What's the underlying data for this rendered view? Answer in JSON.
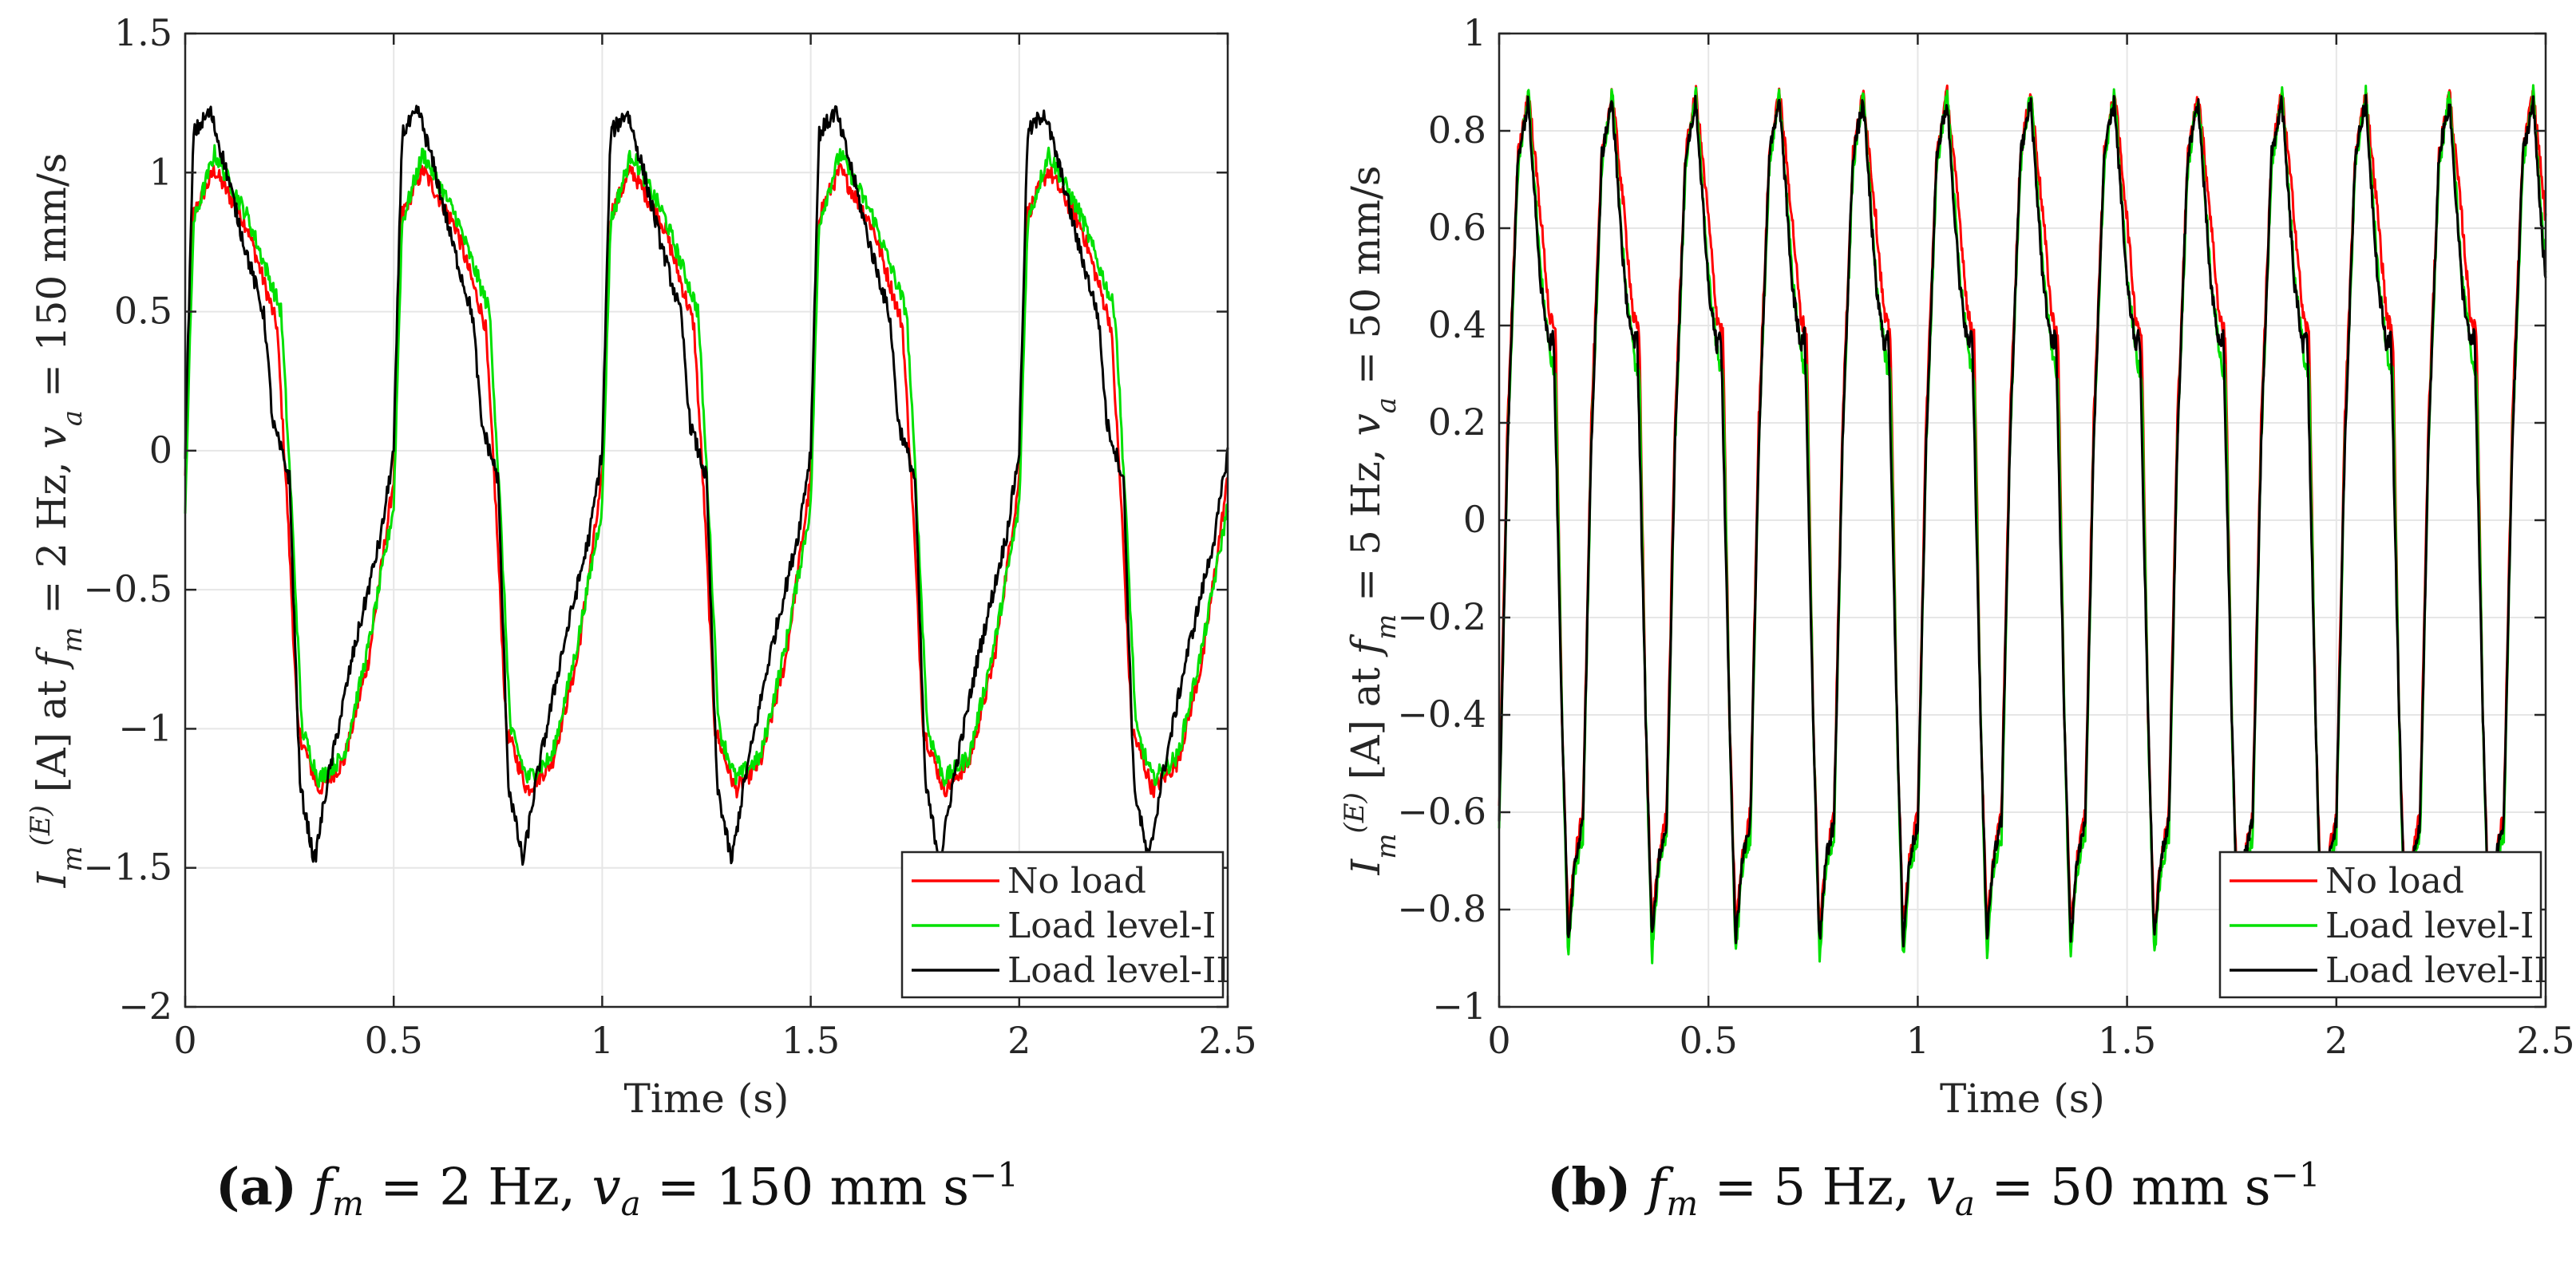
{
  "chart_data": [
    {
      "type": "line",
      "panel": "a",
      "caption": {
        "tag": "(a)",
        "fm": "2 Hz",
        "va": "150 mm s",
        "va_exp": "−1"
      },
      "ylabel": {
        "base": "I",
        "sub": "m",
        "sup": "(E)",
        "rest": " [A] at ",
        "f": "f",
        "fsub": "m",
        "fval": " = 2 Hz, ",
        "v": "v",
        "vsub": "a",
        "vval": " = 150 mm/s"
      },
      "xlabel": "Time (s)",
      "xlim": [
        0,
        2.5
      ],
      "ylim": [
        -2,
        1.5
      ],
      "xticks": [
        0,
        0.5,
        1,
        1.5,
        2,
        2.5
      ],
      "xtick_labels": [
        "0",
        "0.5",
        "1",
        "1.5",
        "2",
        "2.5"
      ],
      "yticks": [
        -2,
        -1.5,
        -1,
        -0.5,
        0,
        0.5,
        1,
        1.5
      ],
      "ytick_labels": [
        "−2",
        "−1.5",
        "−1",
        "−0.5",
        "0",
        "0.5",
        "1",
        "1.5"
      ],
      "grid": true,
      "legend_position": "bottom-right",
      "signal": {
        "frequency_hz": 2,
        "num_points": 1100
      },
      "series": [
        {
          "name": "No load",
          "color": "#ff0000",
          "keypoints": [
            [
              0,
              -0.1
            ],
            [
              0.02,
              0.85
            ],
            [
              0.07,
              1.01
            ],
            [
              0.15,
              0.8
            ],
            [
              0.22,
              0.45
            ],
            [
              0.245,
              -0.2
            ],
            [
              0.27,
              -1.0
            ],
            [
              0.32,
              -1.22
            ],
            [
              0.38,
              -1.12
            ],
            [
              0.44,
              -0.75
            ],
            [
              0.5,
              -0.1
            ]
          ]
        },
        {
          "name": "Load level-I",
          "color": "#00e000",
          "keypoints": [
            [
              0,
              -0.2
            ],
            [
              0.02,
              0.82
            ],
            [
              0.07,
              1.07
            ],
            [
              0.15,
              0.84
            ],
            [
              0.23,
              0.5
            ],
            [
              0.255,
              -0.2
            ],
            [
              0.28,
              -1.0
            ],
            [
              0.32,
              -1.18
            ],
            [
              0.38,
              -1.1
            ],
            [
              0.44,
              -0.7
            ],
            [
              0.5,
              -0.2
            ]
          ]
        },
        {
          "name": "Load level-II",
          "color": "#000000",
          "keypoints": [
            [
              0,
              0.0
            ],
            [
              0.02,
              1.14
            ],
            [
              0.06,
              1.22
            ],
            [
              0.1,
              1.0
            ],
            [
              0.14,
              0.75
            ],
            [
              0.19,
              0.48
            ],
            [
              0.21,
              0.1
            ],
            [
              0.25,
              -0.1
            ],
            [
              0.275,
              -1.2
            ],
            [
              0.31,
              -1.48
            ],
            [
              0.34,
              -1.2
            ],
            [
              0.4,
              -0.75
            ],
            [
              0.47,
              -0.3
            ],
            [
              0.5,
              0.0
            ]
          ]
        }
      ]
    },
    {
      "type": "line",
      "panel": "b",
      "caption": {
        "tag": "(b)",
        "fm": "5 Hz",
        "va": "50 mm s",
        "va_exp": "−1"
      },
      "ylabel": {
        "base": "I",
        "sub": "m",
        "sup": "(E)",
        "rest": " [A] at ",
        "f": "f",
        "fsub": "m",
        "fval": " = 5 Hz, ",
        "v": "v",
        "vsub": "a",
        "vval": " = 50 mm/s"
      },
      "xlabel": "Time (s)",
      "xlim": [
        0,
        2.5
      ],
      "ylim": [
        -1,
        1
      ],
      "xticks": [
        0,
        0.5,
        1,
        1.5,
        2,
        2.5
      ],
      "xtick_labels": [
        "0",
        "0.5",
        "1",
        "1.5",
        "2",
        "2.5"
      ],
      "yticks": [
        -1,
        -0.8,
        -0.6,
        -0.4,
        -0.2,
        0,
        0.2,
        0.4,
        0.6,
        0.8,
        1
      ],
      "ytick_labels": [
        "−1",
        "−0.8",
        "−0.6",
        "−0.4",
        "−0.2",
        "0",
        "0.2",
        "0.4",
        "0.6",
        "0.8",
        "1"
      ],
      "grid": true,
      "legend_position": "bottom-right",
      "signal": {
        "frequency_hz": 5,
        "num_points": 1600
      },
      "series": [
        {
          "name": "No load",
          "color": "#ff0000",
          "keypoints": [
            [
              0,
              -0.6
            ],
            [
              0.02,
              0.2
            ],
            [
              0.045,
              0.75
            ],
            [
              0.07,
              0.88
            ],
            [
              0.1,
              0.62
            ],
            [
              0.12,
              0.42
            ],
            [
              0.135,
              0.38
            ],
            [
              0.15,
              -0.4
            ],
            [
              0.165,
              -0.84
            ],
            [
              0.18,
              -0.7
            ],
            [
              0.2,
              -0.6
            ]
          ]
        },
        {
          "name": "Load level-I",
          "color": "#00e000",
          "keypoints": [
            [
              0,
              -0.65
            ],
            [
              0.02,
              0.15
            ],
            [
              0.045,
              0.72
            ],
            [
              0.07,
              0.88
            ],
            [
              0.1,
              0.5
            ],
            [
              0.125,
              0.32
            ],
            [
              0.135,
              0.3
            ],
            [
              0.15,
              -0.4
            ],
            [
              0.165,
              -0.9
            ],
            [
              0.18,
              -0.72
            ],
            [
              0.2,
              -0.65
            ]
          ]
        },
        {
          "name": "Load level-II",
          "color": "#000000",
          "keypoints": [
            [
              0,
              -0.62
            ],
            [
              0.02,
              0.15
            ],
            [
              0.045,
              0.75
            ],
            [
              0.07,
              0.86
            ],
            [
              0.1,
              0.48
            ],
            [
              0.12,
              0.36
            ],
            [
              0.13,
              0.38
            ],
            [
              0.15,
              -0.4
            ],
            [
              0.165,
              -0.87
            ],
            [
              0.18,
              -0.7
            ],
            [
              0.2,
              -0.62
            ]
          ]
        }
      ]
    }
  ]
}
